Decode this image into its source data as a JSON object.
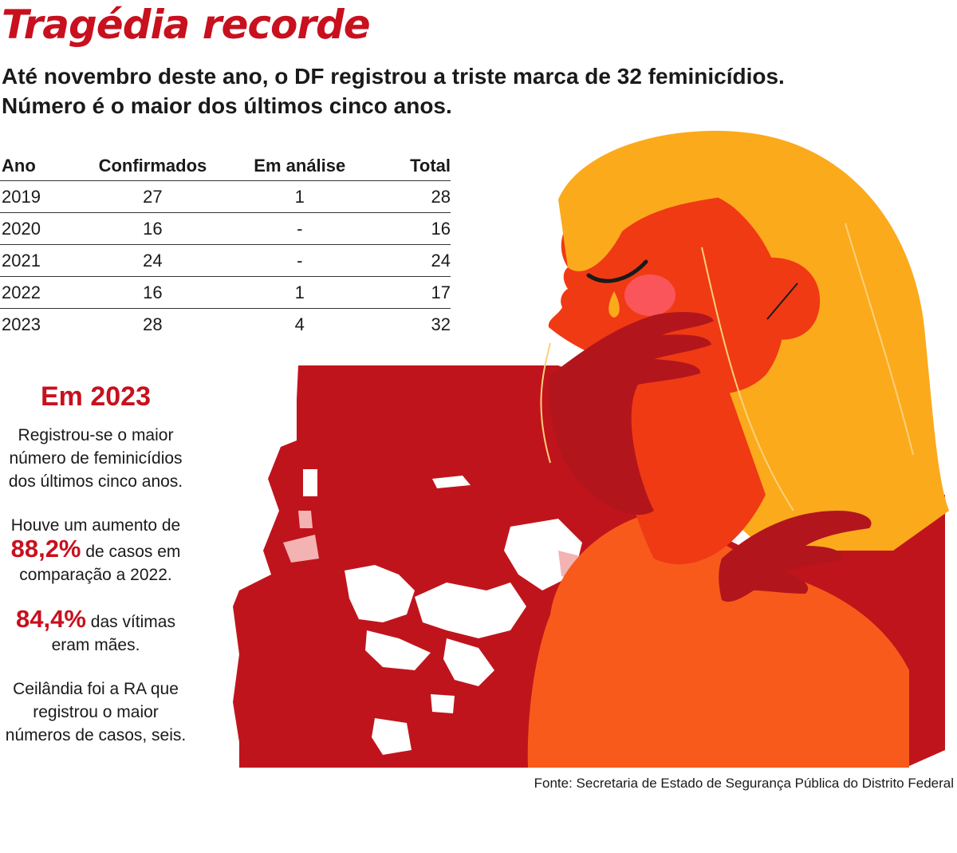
{
  "title": "Tragédia recorde",
  "subtitle_line1": "Até novembro deste ano, o DF registrou a triste marca de 32 feminicídios.",
  "subtitle_line2": "Número é o maior dos últimos cinco anos.",
  "chart_data": {
    "type": "table",
    "columns": [
      "Ano",
      "Confirmados",
      "Em análise",
      "Total"
    ],
    "rows": [
      [
        "2019",
        "27",
        "1",
        "28"
      ],
      [
        "2020",
        "16",
        "-",
        "16"
      ],
      [
        "2021",
        "24",
        "-",
        "24"
      ],
      [
        "2022",
        "16",
        "1",
        "17"
      ],
      [
        "2023",
        "28",
        "4",
        "32"
      ]
    ]
  },
  "highlights": {
    "heading": "Em 2023",
    "fact1": "Registrou-se o maior número de feminicídios dos últimos cinco anos.",
    "fact2_pre": "Houve um aumento de",
    "fact2_value": "88,2%",
    "fact2_post": "de casos em comparação a 2022.",
    "fact3_value": "84,4%",
    "fact3_post": "das vítimas eram mães.",
    "fact4": "Ceilândia foi a RA que registrou o maior números de casos, seis."
  },
  "source": "Fonte: Secretaria de Estado de Segurança Pública do Distrito Federal",
  "colors": {
    "title_red": "#c8101e",
    "map_red": "#c0141c",
    "face_red": "#f03a14",
    "body_orange": "#f85a1c",
    "hair_yellow": "#fbaa1c",
    "hand_dark": "#b2161c"
  },
  "illustration": {
    "map": "federal-district-map",
    "figure": "crying-woman-illustration"
  }
}
